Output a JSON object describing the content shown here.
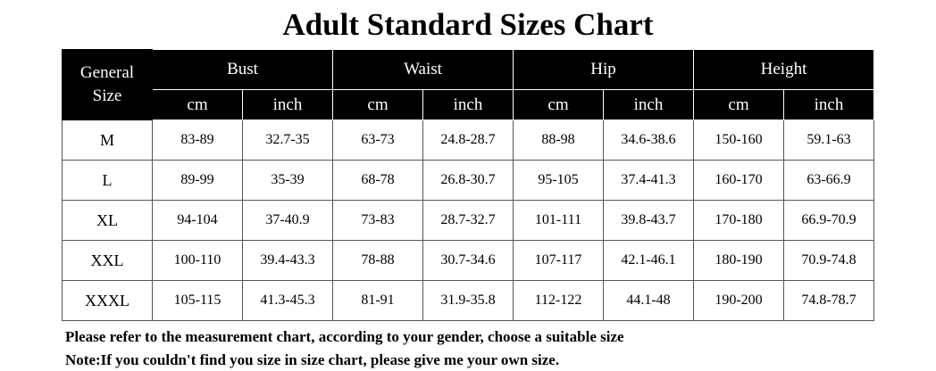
{
  "title": "Adult Standard Sizes Chart",
  "table": {
    "corner": "General Size",
    "groups": [
      "Bust",
      "Waist",
      "Hip",
      "Height"
    ],
    "units": [
      "cm",
      "inch",
      "cm",
      "inch",
      "cm",
      "inch",
      "cm",
      "inch"
    ],
    "rows": [
      [
        "M",
        "83-89",
        "32.7-35",
        "63-73",
        "24.8-28.7",
        "88-98",
        "34.6-38.6",
        "150-160",
        "59.1-63"
      ],
      [
        "L",
        "89-99",
        "35-39",
        "68-78",
        "26.8-30.7",
        "95-105",
        "37.4-41.3",
        "160-170",
        "63-66.9"
      ],
      [
        "XL",
        "94-104",
        "37-40.9",
        "73-83",
        "28.7-32.7",
        "101-111",
        "39.8-43.7",
        "170-180",
        "66.9-70.9"
      ],
      [
        "XXL",
        "100-110",
        "39.4-43.3",
        "78-88",
        "30.7-34.6",
        "107-117",
        "42.1-46.1",
        "180-190",
        "70.9-74.8"
      ],
      [
        "XXXL",
        "105-115",
        "41.3-45.3",
        "81-91",
        "31.9-35.8",
        "112-122",
        "44.1-48",
        "190-200",
        "74.8-78.7"
      ]
    ]
  },
  "notes": [
    "Please refer to the measurement chart, according to your gender, choose a suitable size",
    "Note:If you couldn't find you size in size chart, please give me your own size."
  ]
}
